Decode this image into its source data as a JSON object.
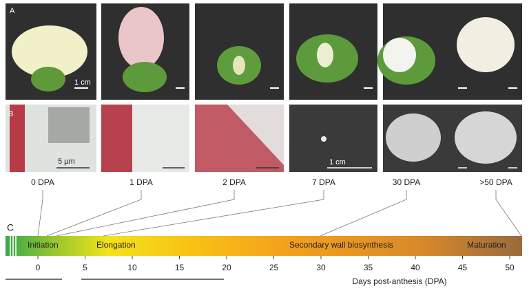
{
  "panels": [
    "A",
    "B",
    "C"
  ],
  "scale_labels": [
    "1 cm",
    "5 µm",
    "1 cm"
  ],
  "stages": [
    "0 DPA",
    "1 DPA",
    "2 DPA",
    "7 DPA",
    "30 DPA",
    ">50 DPA"
  ],
  "phases": [
    "Initiation",
    "Elongation",
    "Secondary wall biosynthesis",
    "Maturation"
  ],
  "axis": {
    "ticks": [
      0,
      5,
      10,
      15,
      20,
      25,
      30,
      35,
      40,
      45,
      50
    ],
    "label": "Days post-anthesis (DPA)"
  }
}
